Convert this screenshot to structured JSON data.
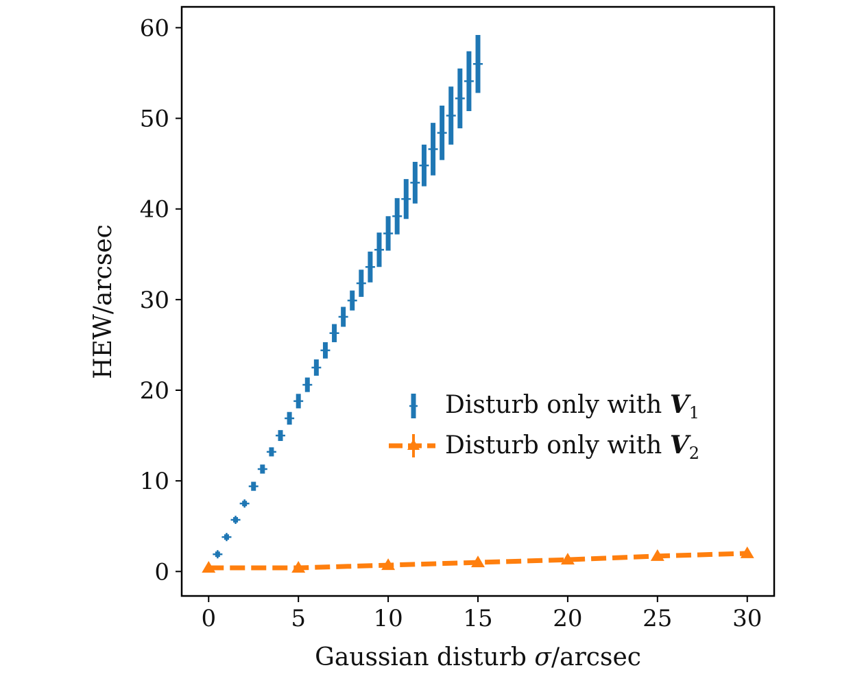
{
  "chart_data": {
    "type": "scatter",
    "title": "",
    "xlabel_parts": {
      "pre": "Gaussian disturb ",
      "sym": "σ",
      "post": "/arcsec"
    },
    "ylabel": "HEW/arcsec",
    "xlim": [
      -1.5,
      31.5
    ],
    "ylim": [
      -2.7,
      62.3
    ],
    "xticks": [
      0,
      5,
      10,
      15,
      20,
      25,
      30
    ],
    "yticks": [
      0,
      10,
      20,
      30,
      40,
      50,
      60
    ],
    "grid": false,
    "legend_position": "center-right",
    "series": [
      {
        "name_parts": {
          "text": "Disturb only with ",
          "bold": "V",
          "sub": "1"
        },
        "color": "#1f77b4",
        "marker": "+",
        "linestyle": "none",
        "points": [
          {
            "x": 0.5,
            "y": 1.9,
            "err": 0.3
          },
          {
            "x": 1.0,
            "y": 3.8,
            "err": 0.3
          },
          {
            "x": 1.5,
            "y": 5.7,
            "err": 0.3
          },
          {
            "x": 2.0,
            "y": 7.5,
            "err": 0.3
          },
          {
            "x": 2.5,
            "y": 9.4,
            "err": 0.5
          },
          {
            "x": 3.0,
            "y": 11.3,
            "err": 0.5
          },
          {
            "x": 3.5,
            "y": 13.2,
            "err": 0.5
          },
          {
            "x": 4.0,
            "y": 15.0,
            "err": 0.6
          },
          {
            "x": 4.5,
            "y": 16.9,
            "err": 0.7
          },
          {
            "x": 5.0,
            "y": 18.8,
            "err": 0.8
          },
          {
            "x": 5.5,
            "y": 20.6,
            "err": 0.8
          },
          {
            "x": 6.0,
            "y": 22.5,
            "err": 0.9
          },
          {
            "x": 6.5,
            "y": 24.4,
            "err": 0.9
          },
          {
            "x": 7.0,
            "y": 26.3,
            "err": 1.0
          },
          {
            "x": 7.5,
            "y": 28.1,
            "err": 1.1
          },
          {
            "x": 8.0,
            "y": 29.9,
            "err": 1.1
          },
          {
            "x": 8.5,
            "y": 31.8,
            "err": 1.5
          },
          {
            "x": 9.0,
            "y": 33.6,
            "err": 1.7
          },
          {
            "x": 9.5,
            "y": 35.5,
            "err": 1.9
          },
          {
            "x": 10.0,
            "y": 37.3,
            "err": 1.9
          },
          {
            "x": 10.5,
            "y": 39.2,
            "err": 2.0
          },
          {
            "x": 11.0,
            "y": 41.1,
            "err": 2.2
          },
          {
            "x": 11.5,
            "y": 42.9,
            "err": 2.3
          },
          {
            "x": 12.0,
            "y": 44.8,
            "err": 2.3
          },
          {
            "x": 12.5,
            "y": 46.6,
            "err": 2.9
          },
          {
            "x": 13.0,
            "y": 48.4,
            "err": 3.0
          },
          {
            "x": 13.5,
            "y": 50.3,
            "err": 3.2
          },
          {
            "x": 14.0,
            "y": 52.2,
            "err": 3.3
          },
          {
            "x": 14.5,
            "y": 54.1,
            "err": 3.3
          },
          {
            "x": 15.0,
            "y": 56.0,
            "err": 3.2
          }
        ]
      },
      {
        "name_parts": {
          "text": "Disturb only with ",
          "bold": "V",
          "sub": "2"
        },
        "color": "#ff7f0e",
        "marker": "triangle",
        "linestyle": "dashed",
        "points": [
          {
            "x": 0,
            "y": 0.4,
            "err": 0.2
          },
          {
            "x": 5,
            "y": 0.4,
            "err": 0.2
          },
          {
            "x": 10,
            "y": 0.7,
            "err": 0.2
          },
          {
            "x": 15,
            "y": 1.0,
            "err": 0.2
          },
          {
            "x": 20,
            "y": 1.3,
            "err": 0.2
          },
          {
            "x": 25,
            "y": 1.7,
            "err": 0.2
          },
          {
            "x": 30,
            "y": 2.0,
            "err": 0.2
          }
        ]
      }
    ]
  }
}
